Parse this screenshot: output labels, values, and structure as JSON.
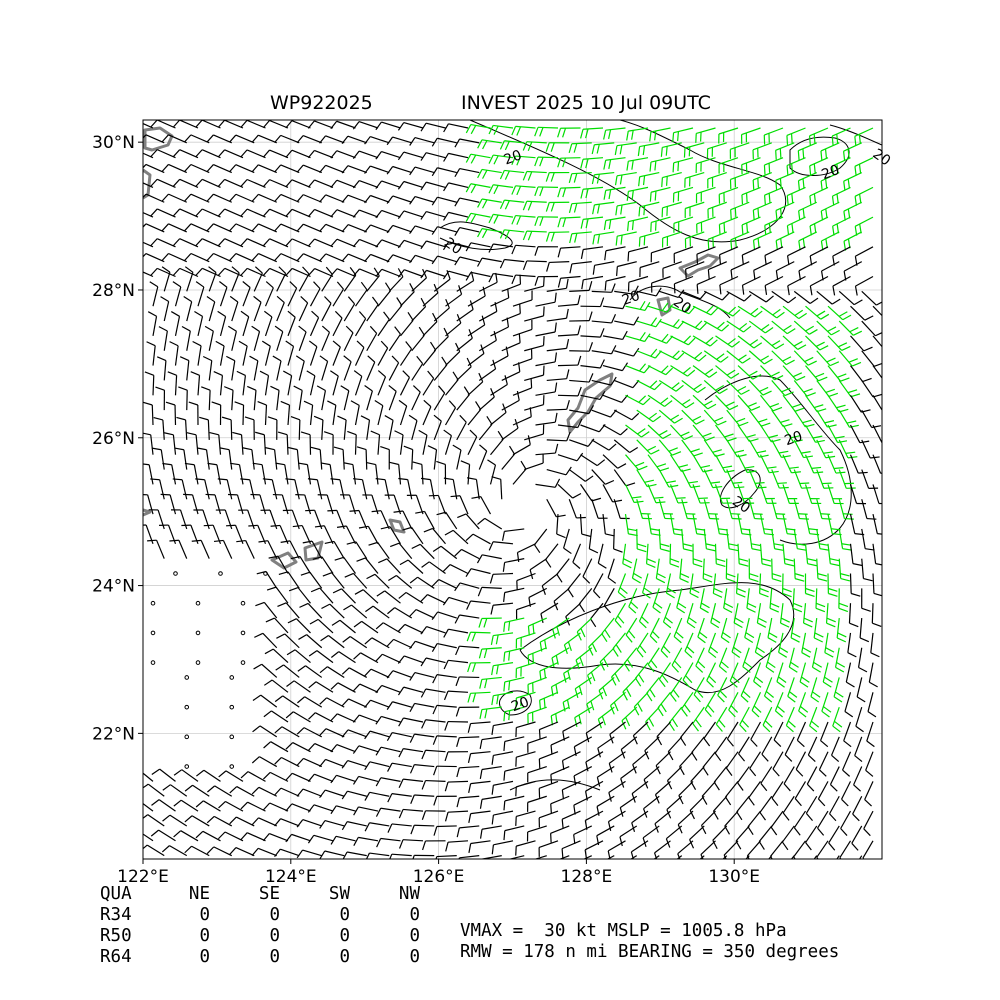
{
  "title": {
    "storm_id": "WP922025",
    "description": "INVEST 2025 10 Jul 09UTC"
  },
  "chart_data": {
    "type": "wind barb map",
    "x_ticks": [
      {
        "value": 122,
        "label": "122°E"
      },
      {
        "value": 124,
        "label": "124°E"
      },
      {
        "value": 126,
        "label": "126°E"
      },
      {
        "value": 128,
        "label": "128°E"
      },
      {
        "value": 130,
        "label": "130°E"
      }
    ],
    "y_ticks": [
      {
        "value": 22,
        "label": "22°N"
      },
      {
        "value": 24,
        "label": "24°N"
      },
      {
        "value": 26,
        "label": "26°N"
      },
      {
        "value": 28,
        "label": "28°N"
      },
      {
        "value": 30,
        "label": "30°N"
      }
    ],
    "xlim": [
      122,
      132
    ],
    "ylim": [
      20.3,
      30.3
    ],
    "grid": true,
    "center": {
      "lon": 127.2,
      "lat": 25.1
    },
    "contour_level_label": "20",
    "contour_labels": [
      {
        "lon": 127.0,
        "lat": 29.8
      },
      {
        "lon": 132.0,
        "lat": 29.8
      },
      {
        "lon": 131.3,
        "lat": 29.6
      },
      {
        "lon": 126.2,
        "lat": 28.6
      },
      {
        "lon": 128.6,
        "lat": 27.9
      },
      {
        "lon": 129.3,
        "lat": 27.8
      },
      {
        "lon": 130.8,
        "lat": 26.0
      },
      {
        "lon": 130.1,
        "lat": 25.1
      },
      {
        "lon": 127.1,
        "lat": 22.4
      }
    ],
    "high_wind_color": "#00dd00",
    "low_wind_color": "#000000",
    "land_color": "#808080"
  },
  "radii_table": {
    "headers": [
      "QUA",
      "NE",
      "SE",
      "SW",
      "NW"
    ],
    "rows": [
      {
        "label": "R34",
        "values": [
          "0",
          "0",
          "0",
          "0"
        ]
      },
      {
        "label": "R50",
        "values": [
          "0",
          "0",
          "0",
          "0"
        ]
      },
      {
        "label": "R64",
        "values": [
          "0",
          "0",
          "0",
          "0"
        ]
      }
    ]
  },
  "info": {
    "line1": "VMAX =  30 kt MSLP = 1005.8 hPa",
    "line2": "RMW = 178 n mi BEARING = 350 degrees"
  }
}
